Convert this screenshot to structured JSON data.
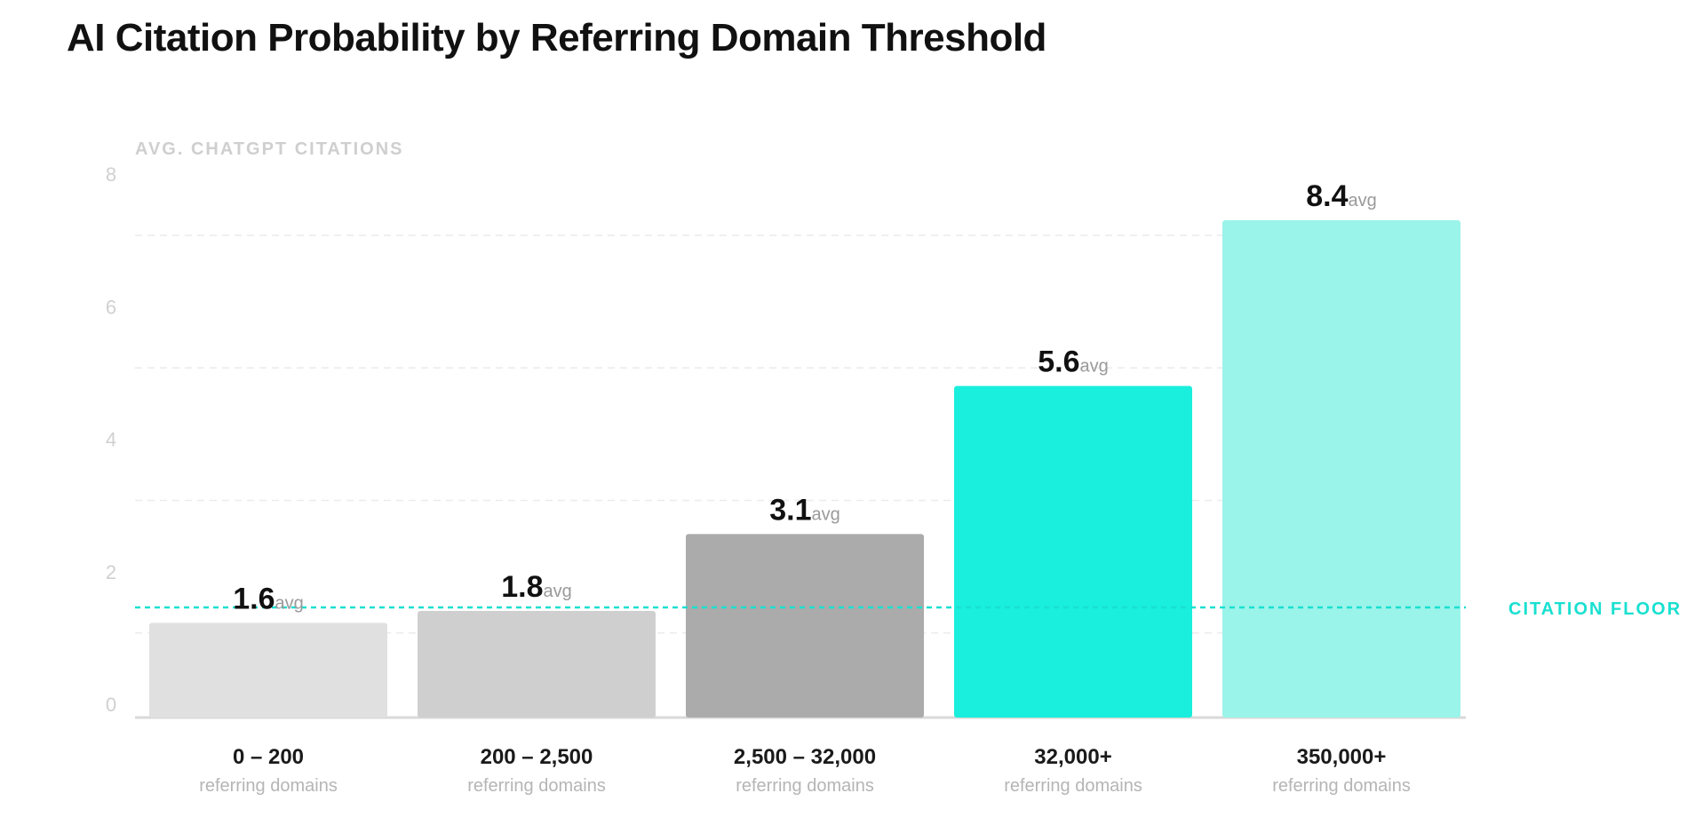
{
  "chart_title": "AI Citation Probability by Referring Domain Threshold",
  "chart_data": {
    "type": "bar",
    "title": "AI Citation Probability by Referring Domain Threshold",
    "ylabel": "AVG. CHATGPT CITATIONS",
    "xlabel": "",
    "ylim": [
      0,
      8
    ],
    "yticks": [
      0,
      2,
      4,
      6,
      8
    ],
    "grid": true,
    "categories": [
      "0 – 200",
      "200 – 2,500",
      "2,500 – 32,000",
      "32,000+",
      "350,000+"
    ],
    "category_sublabel": "referring domains",
    "values": [
      1.6,
      1.8,
      3.1,
      5.6,
      8.4
    ],
    "value_suffix": "avg",
    "bar_colors": [
      "#e0e0e0",
      "#cfcfcf",
      "#ababab",
      "#19efdc",
      "#9af4ea"
    ],
    "reference_line": {
      "label": "CITATION FLOOR",
      "color": "#19e0d0",
      "style": "dashed"
    }
  }
}
